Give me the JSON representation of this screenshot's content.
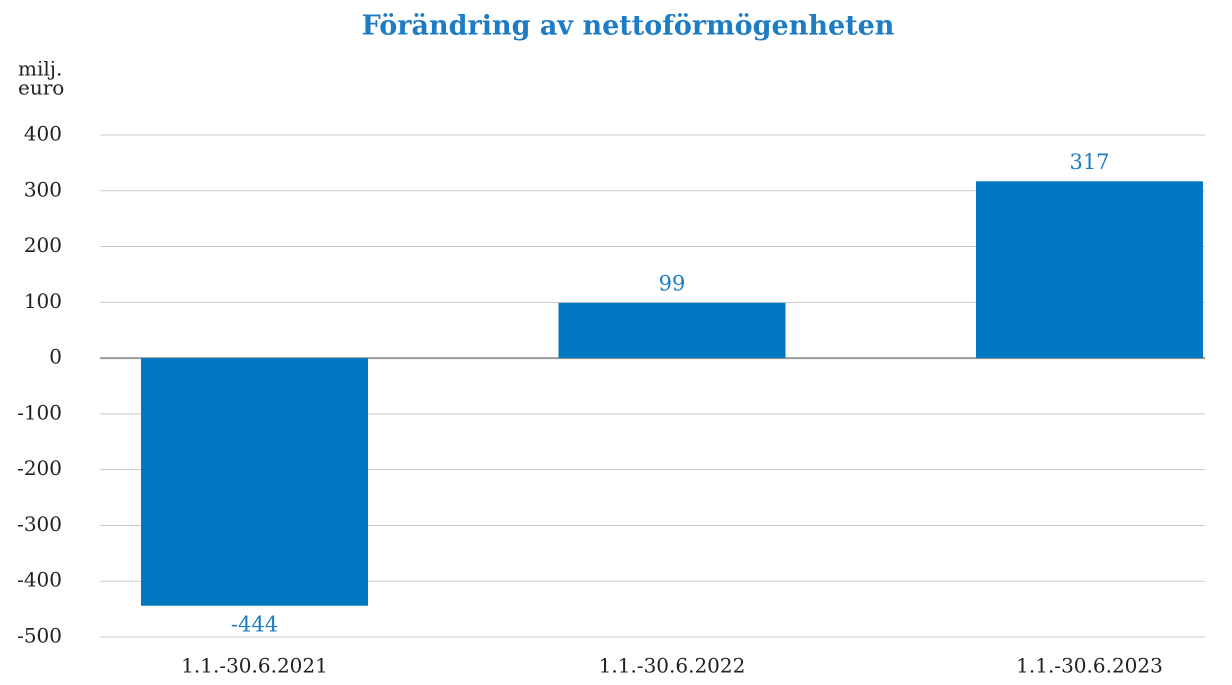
{
  "chart_data": {
    "type": "bar",
    "title": "Förändring av nettoförmögenheten",
    "ylabel": [
      "milj.",
      "euro"
    ],
    "categories": [
      "1.1.-30.6.2021",
      "1.1.-30.6.2022",
      "1.1.-30.6.2023"
    ],
    "values": [
      -444,
      99,
      317
    ],
    "color": "#0079c2",
    "ylim": [
      -500,
      400
    ],
    "yticks": [
      -500,
      -400,
      -300,
      -200,
      -100,
      0,
      100,
      200,
      300,
      400
    ],
    "grid": true
  }
}
